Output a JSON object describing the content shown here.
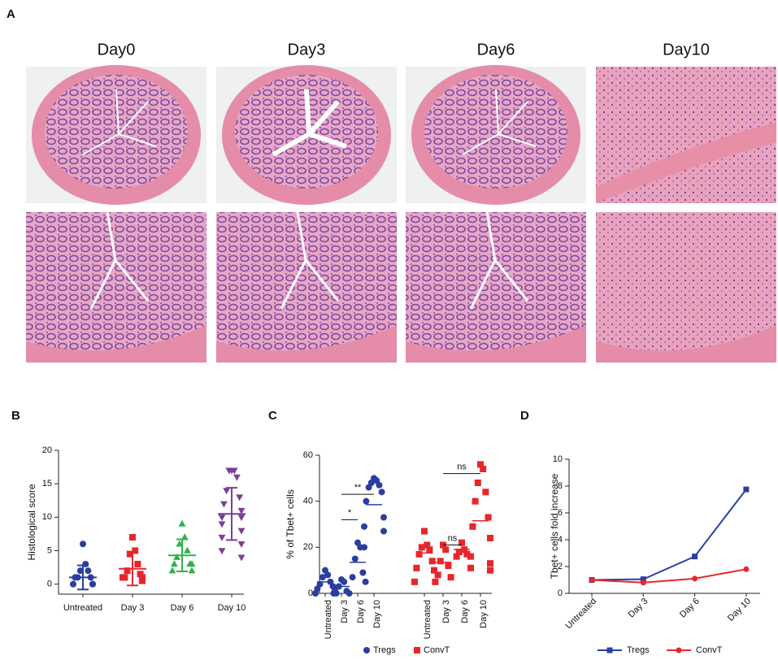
{
  "panel_a": {
    "label": "A",
    "columns": [
      "Day0",
      "Day3",
      "Day6",
      "Day10"
    ]
  },
  "chart_data": [
    {
      "type": "dotplot",
      "panel": "B",
      "ylabel": "Histological score",
      "categories": [
        "Untreated",
        "Day 3",
        "Day 6",
        "Day 10"
      ],
      "colors": [
        "#2b3ea0",
        "#e8262a",
        "#2eb34a",
        "#7b3f98"
      ],
      "markers": [
        "circle",
        "square",
        "triangle-up",
        "triangle-down"
      ],
      "points": [
        [
          6,
          3,
          2,
          2,
          1,
          1,
          1,
          0,
          0,
          0,
          0,
          0
        ],
        [
          7,
          5,
          4.5,
          3,
          2,
          1.5,
          1,
          1,
          1,
          0.5
        ],
        [
          9,
          7,
          6,
          5,
          4,
          3,
          3,
          3,
          2,
          2
        ],
        [
          17,
          17,
          17,
          16,
          14,
          13,
          12,
          11,
          10,
          10,
          9,
          8,
          7,
          6,
          5,
          4
        ]
      ],
      "means": [
        1,
        2.3,
        4.3,
        10.5
      ],
      "sd": [
        1.8,
        2.5,
        2.4,
        3.9
      ],
      "ylim": [
        -1.5,
        20
      ],
      "yticks": [
        0,
        5,
        10,
        15,
        20
      ]
    },
    {
      "type": "dotplot",
      "panel": "C",
      "ylabel": "% of Tbet+ cells",
      "categories": [
        "Untreated",
        "Day 3",
        "Day 6",
        "Day 10",
        "Untreated",
        "Day 3",
        "Day 6",
        "Day 10"
      ],
      "series": [
        {
          "name": "Tregs",
          "color": "#2b3ea0",
          "marker": "circle",
          "points": [
            [
              10,
              8,
              7,
              5,
              4,
              3,
              2,
              1,
              0
            ],
            [
              6,
              5,
              3,
              1,
              0,
              0,
              0
            ],
            [
              22,
              20,
              15,
              9,
              7,
              5
            ],
            [
              50,
              49,
              48,
              47,
              46,
              44,
              40,
              33,
              29,
              27,
              20
            ],
            null,
            null,
            null,
            null
          ],
          "means": [
            5,
            3,
            13.5,
            38.5,
            null,
            null,
            null,
            null
          ]
        },
        {
          "name": "ConvT",
          "color": "#e8262a",
          "marker": "square",
          "points": [
            null,
            null,
            null,
            null,
            [
              27,
              21,
              20,
              19,
              17,
              14,
              11,
              10,
              5
            ],
            [
              21,
              19,
              14,
              12,
              8,
              7,
              5
            ],
            [
              22,
              19,
              18,
              17,
              16
            ],
            [
              56,
              54,
              48,
              44,
              40,
              33,
              29,
              24,
              16,
              13,
              11,
              10
            ]
          ],
          "means": [
            null,
            null,
            null,
            null,
            17.5,
            13.5,
            19,
            31.5
          ]
        }
      ],
      "annotations": [
        {
          "text": "*",
          "from": 1,
          "to": 2,
          "y": 32
        },
        {
          "text": "**",
          "from": 1,
          "to": 3,
          "y": 43
        },
        {
          "text": "ns",
          "from": 5,
          "to": 6,
          "y": 21
        },
        {
          "text": "ns",
          "from": 5,
          "to": 7,
          "y": 52
        }
      ],
      "ylim": [
        0,
        60
      ],
      "yticks": [
        0,
        20,
        40,
        60
      ],
      "legend": "bottom"
    },
    {
      "type": "line",
      "panel": "D",
      "ylabel": "Tbet+ cells fold increase",
      "categories": [
        "Untreated",
        "Day 3",
        "Day 6",
        "Day 10"
      ],
      "series": [
        {
          "name": "Tregs",
          "color": "#2b3ea0",
          "marker": "square",
          "values": [
            1,
            1.05,
            2.75,
            7.75
          ]
        },
        {
          "name": "ConvT",
          "color": "#e8262a",
          "marker": "circle",
          "values": [
            1,
            0.8,
            1.1,
            1.8
          ]
        }
      ],
      "ylim": [
        0,
        10
      ],
      "yticks": [
        0,
        2,
        4,
        6,
        8,
        10
      ],
      "legend": "bottom"
    }
  ]
}
